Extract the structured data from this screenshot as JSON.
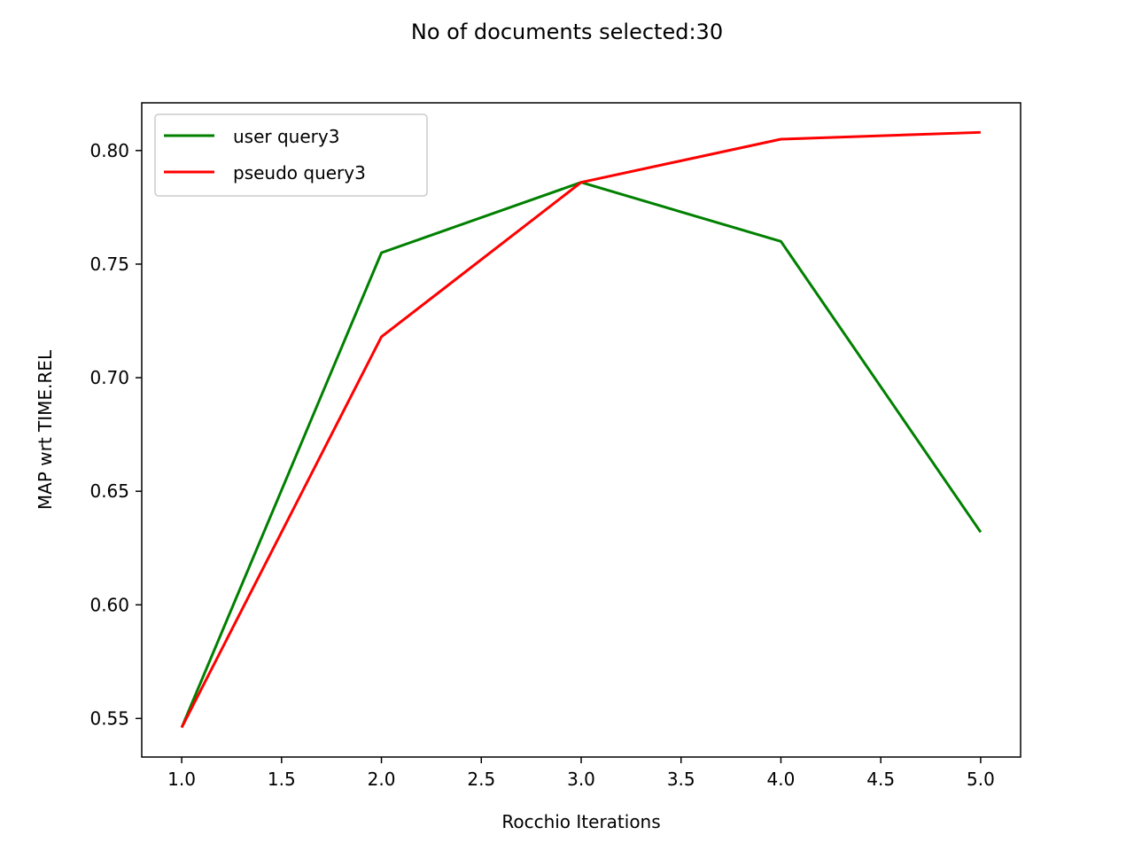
{
  "chart_data": {
    "type": "line",
    "title": "No of documents selected:30",
    "xlabel": "Rocchio Iterations",
    "ylabel": "MAP wrt TIME.REL",
    "xlim": [
      0.8,
      5.2
    ],
    "ylim": [
      0.533,
      0.821
    ],
    "xticks": [
      1.0,
      1.5,
      2.0,
      2.5,
      3.0,
      3.5,
      4.0,
      4.5,
      5.0
    ],
    "xtick_labels": [
      "1.0",
      "1.5",
      "2.0",
      "2.5",
      "3.0",
      "3.5",
      "4.0",
      "4.5",
      "5.0"
    ],
    "yticks": [
      0.55,
      0.6,
      0.65,
      0.7,
      0.75,
      0.8
    ],
    "ytick_labels": [
      "0.55",
      "0.60",
      "0.65",
      "0.70",
      "0.75",
      "0.80"
    ],
    "grid": false,
    "legend_position": "top-left",
    "x": [
      1,
      2,
      3,
      4,
      5
    ],
    "series": [
      {
        "name": "user query3",
        "color": "#008000",
        "values": [
          0.546,
          0.755,
          0.786,
          0.76,
          0.632
        ]
      },
      {
        "name": "pseudo query3",
        "color": "#ff0000",
        "values": [
          0.546,
          0.718,
          0.786,
          0.805,
          0.808
        ]
      }
    ]
  }
}
